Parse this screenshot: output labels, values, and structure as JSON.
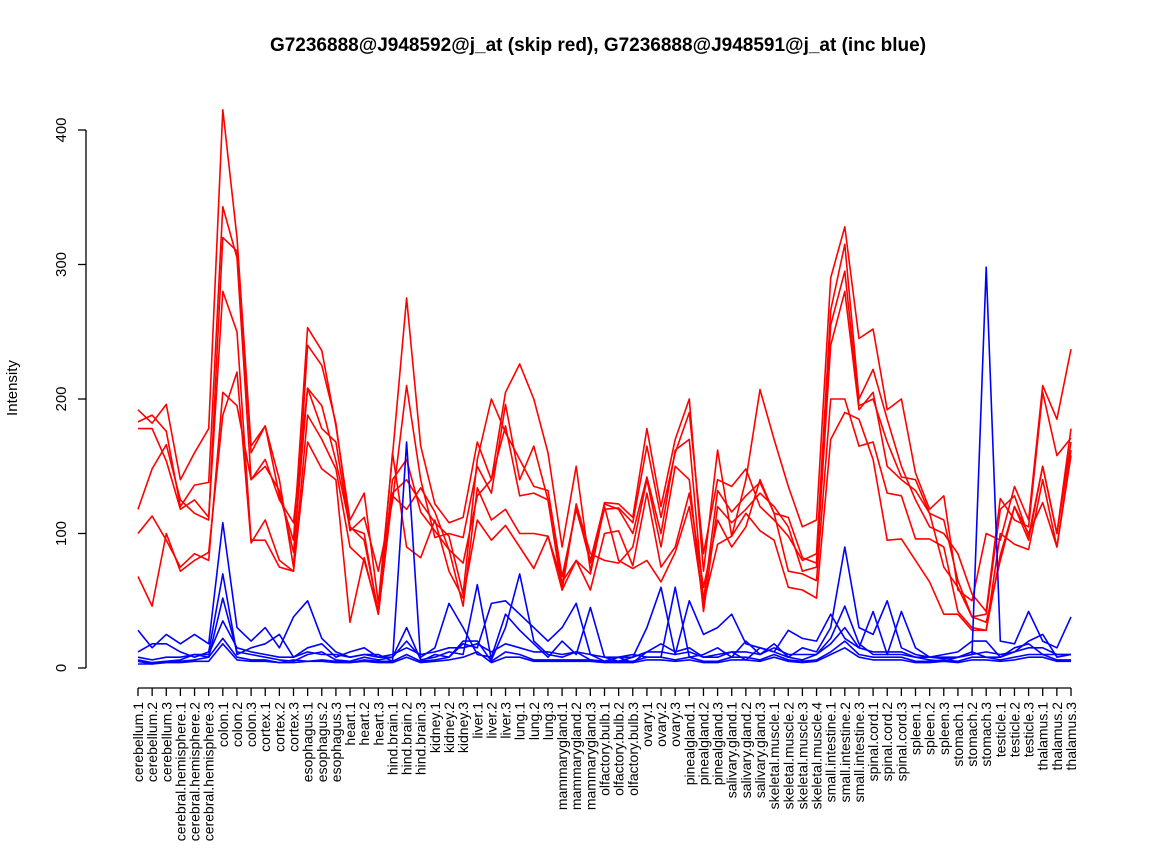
{
  "chart_data": {
    "type": "line",
    "title": "G7236888@J948592@j_at (skip red), G7236888@J948591@j_at (inc blue)",
    "ylabel": "Intensity",
    "xlabel": "",
    "ylim": [
      0,
      420
    ],
    "yticks": [
      0,
      100,
      200,
      300,
      400
    ],
    "grid": false,
    "legend": "none",
    "colors": {
      "skip": "#ff0000",
      "inc": "#0000ff"
    },
    "categories": [
      "cerebellum.1",
      "cerebellum.2",
      "cerebellum.3",
      "cerebral.hemisphere.1",
      "cerebral.hemisphere.2",
      "cerebral.hemisphere.3",
      "colon.1",
      "colon.2",
      "colon.3",
      "cortex.1",
      "cortex.2",
      "cortex.3",
      "esophagus.1",
      "esophagus.2",
      "esophagus.3",
      "heart.1",
      "heart.2",
      "heart.3",
      "hind.brain.1",
      "hind.brain.2",
      "hind.brain.3",
      "kidney.1",
      "kidney.2",
      "kidney.3",
      "liver.1",
      "liver.2",
      "liver.3",
      "lung.1",
      "lung.2",
      "lung.3",
      "mammarygland.1",
      "mammarygland.2",
      "mammarygland.3",
      "olfactory.bulb.1",
      "olfactory.bulb.2",
      "olfactory.bulb.3",
      "ovary.1",
      "ovary.2",
      "ovary.3",
      "pinealgland.1",
      "pinealgland.2",
      "pinealgland.3",
      "salivary.gland.1",
      "salivary.gland.2",
      "salivary.gland.3",
      "skeletal.muscle.1",
      "skeletal.muscle.2",
      "skeletal.muscle.3",
      "skeletal.muscle.4",
      "small.intestine.1",
      "small.intestine.2",
      "small.intestine.3",
      "spinal.cord.1",
      "spinal.cord.2",
      "spinal.cord.3",
      "spleen.1",
      "spleen.2",
      "spleen.3",
      "stomach.1",
      "stomach.2",
      "stomach.3",
      "testicle.1",
      "testicle.2",
      "testicle.3",
      "thalamus.1",
      "thalamus.2",
      "thalamus.3"
    ],
    "series": [
      {
        "group": "skip",
        "values": [
          192,
          182,
          196,
          140,
          160,
          178,
          415,
          320,
          165,
          180,
          128,
          95,
          253,
          236,
          180,
          110,
          130,
          48,
          158,
          275,
          165,
          122,
          108,
          112,
          168,
          140,
          205,
          226,
          200,
          160,
          90,
          150,
          72,
          123,
          122,
          112,
          178,
          120,
          170,
          200,
          72,
          162,
          98,
          140,
          207,
          170,
          135,
          105,
          110,
          290,
          328,
          245,
          252,
          192,
          200,
          145,
          118,
          128,
          58,
          50,
          100,
          95,
          135,
          110,
          210,
          185,
          237
        ]
      },
      {
        "group": "skip",
        "values": [
          183,
          188,
          176,
          120,
          136,
          138,
          343,
          305,
          140,
          155,
          125,
          108,
          208,
          178,
          168,
          102,
          112,
          72,
          124,
          210,
          140,
          97,
          100,
          97,
          150,
          130,
          196,
          140,
          165,
          125,
          62,
          120,
          78,
          118,
          119,
          108,
          165,
          112,
          160,
          190,
          85,
          140,
          135,
          148,
          120,
          110,
          98,
          80,
          85,
          266,
          315,
          200,
          222,
          185,
          150,
          125,
          105,
          100,
          85,
          55,
          42,
          126,
          110,
          105,
          205,
          158,
          171
        ]
      },
      {
        "group": "skip",
        "values": [
          118,
          148,
          166,
          125,
          115,
          110,
          320,
          310,
          160,
          180,
          140,
          75,
          240,
          225,
          182,
          104,
          100,
          40,
          130,
          140,
          123,
          108,
          98,
          55,
          155,
          200,
          175,
          155,
          135,
          132,
          68,
          118,
          80,
          122,
          118,
          100,
          142,
          100,
          162,
          170,
          50,
          132,
          116,
          128,
          138,
          115,
          112,
          82,
          78,
          255,
          295,
          195,
          200,
          168,
          142,
          140,
          115,
          75,
          60,
          38,
          40,
          118,
          128,
          98,
          150,
          100,
          178
        ]
      },
      {
        "group": "skip",
        "values": [
          100,
          113,
          95,
          75,
          85,
          80,
          205,
          195,
          140,
          150,
          132,
          86,
          208,
          195,
          154,
          105,
          95,
          42,
          140,
          155,
          116,
          102,
          88,
          78,
          128,
          140,
          180,
          128,
          130,
          125,
          58,
          122,
          85,
          80,
          78,
          90,
          140,
          90,
          150,
          140,
          42,
          120,
          108,
          118,
          130,
          120,
          105,
          72,
          75,
          240,
          280,
          192,
          205,
          150,
          140,
          132,
          115,
          110,
          65,
          38,
          34,
          80,
          120,
          95,
          150,
          100,
          168
        ]
      },
      {
        "group": "skip",
        "values": [
          68,
          46,
          100,
          72,
          80,
          86,
          188,
          220,
          93,
          110,
          80,
          72,
          168,
          148,
          140,
          34,
          82,
          40,
          128,
          118,
          134,
          116,
          88,
          46,
          134,
          110,
          118,
          100,
          100,
          98,
          58,
          80,
          58,
          100,
          102,
          76,
          130,
          75,
          90,
          130,
          60,
          110,
          90,
          105,
          140,
          115,
          72,
          70,
          65,
          200,
          200,
          165,
          168,
          130,
          128,
          96,
          96,
          90,
          42,
          30,
          28,
          100,
          92,
          88,
          140,
          90,
          162
        ]
      },
      {
        "group": "skip",
        "values": [
          178,
          178,
          154,
          118,
          125,
          112,
          280,
          250,
          95,
          95,
          75,
          72,
          188,
          170,
          148,
          90,
          80,
          42,
          160,
          90,
          82,
          110,
          72,
          52,
          110,
          95,
          106,
          90,
          74,
          98,
          64,
          80,
          70,
          120,
          80,
          74,
          80,
          64,
          86,
          120,
          48,
          92,
          98,
          115,
          102,
          95,
          60,
          58,
          52,
          170,
          190,
          185,
          155,
          95,
          96,
          80,
          64,
          40,
          40,
          28,
          28,
          84,
          120,
          100,
          123,
          90,
          158
        ]
      },
      {
        "group": "inc",
        "values": [
          28,
          15,
          25,
          18,
          25,
          18,
          108,
          30,
          20,
          30,
          15,
          38,
          50,
          22,
          12,
          8,
          10,
          10,
          5,
          168,
          5,
          10,
          8,
          18,
          15,
          48,
          50,
          40,
          30,
          20,
          30,
          48,
          10,
          5,
          8,
          10,
          8,
          8,
          60,
          8,
          10,
          15,
          8,
          20,
          10,
          18,
          8,
          15,
          12,
          30,
          90,
          30,
          25,
          50,
          15,
          10,
          8,
          7,
          8,
          10,
          298,
          20,
          18,
          42,
          20,
          15,
          38
        ]
      },
      {
        "group": "inc",
        "values": [
          12,
          18,
          18,
          12,
          8,
          12,
          70,
          10,
          15,
          18,
          25,
          8,
          15,
          18,
          8,
          12,
          15,
          8,
          8,
          20,
          8,
          15,
          48,
          30,
          10,
          8,
          40,
          28,
          18,
          8,
          20,
          10,
          45,
          8,
          5,
          8,
          30,
          60,
          10,
          50,
          25,
          30,
          40,
          18,
          15,
          12,
          28,
          22,
          20,
          40,
          22,
          15,
          42,
          10,
          42,
          15,
          8,
          10,
          12,
          20,
          20,
          8,
          15,
          18,
          10,
          10,
          10
        ]
      },
      {
        "group": "inc",
        "values": [
          6,
          4,
          5,
          6,
          10,
          8,
          52,
          12,
          10,
          8,
          6,
          5,
          10,
          12,
          6,
          5,
          8,
          6,
          8,
          30,
          6,
          8,
          12,
          10,
          62,
          6,
          30,
          70,
          20,
          10,
          8,
          12,
          6,
          5,
          8,
          4,
          12,
          18,
          12,
          15,
          8,
          10,
          12,
          6,
          15,
          12,
          8,
          6,
          10,
          22,
          46,
          18,
          10,
          10,
          10,
          8,
          6,
          5,
          8,
          12,
          8,
          8,
          12,
          20,
          25,
          8,
          10
        ]
      },
      {
        "group": "inc",
        "values": [
          5,
          3,
          5,
          5,
          6,
          8,
          22,
          8,
          6,
          6,
          4,
          6,
          5,
          6,
          5,
          4,
          6,
          5,
          5,
          10,
          5,
          6,
          8,
          20,
          20,
          5,
          12,
          10,
          6,
          6,
          6,
          6,
          6,
          5,
          5,
          5,
          8,
          8,
          6,
          8,
          5,
          5,
          8,
          8,
          6,
          10,
          6,
          5,
          6,
          12,
          20,
          10,
          8,
          8,
          8,
          5,
          5,
          6,
          5,
          8,
          8,
          6,
          8,
          10,
          10,
          6,
          6
        ]
      },
      {
        "group": "inc",
        "values": [
          3,
          3,
          4,
          4,
          5,
          5,
          18,
          6,
          5,
          5,
          4,
          4,
          5,
          5,
          4,
          4,
          5,
          4,
          4,
          8,
          4,
          5,
          6,
          8,
          12,
          4,
          8,
          8,
          5,
          5,
          5,
          5,
          5,
          4,
          4,
          4,
          6,
          6,
          5,
          6,
          4,
          4,
          6,
          6,
          5,
          8,
          5,
          4,
          5,
          10,
          15,
          8,
          6,
          6,
          6,
          4,
          4,
          5,
          4,
          6,
          6,
          5,
          6,
          8,
          8,
          5,
          5
        ]
      },
      {
        "group": "inc",
        "values": [
          8,
          6,
          8,
          8,
          10,
          10,
          35,
          15,
          12,
          10,
          8,
          8,
          12,
          10,
          10,
          8,
          10,
          8,
          10,
          15,
          10,
          12,
          15,
          15,
          18,
          12,
          18,
          15,
          12,
          12,
          10,
          12,
          10,
          8,
          8,
          8,
          12,
          12,
          10,
          12,
          8,
          8,
          12,
          12,
          10,
          15,
          10,
          10,
          10,
          18,
          30,
          15,
          12,
          12,
          12,
          8,
          8,
          8,
          8,
          10,
          12,
          10,
          12,
          15,
          15,
          10,
          10
        ]
      }
    ]
  }
}
